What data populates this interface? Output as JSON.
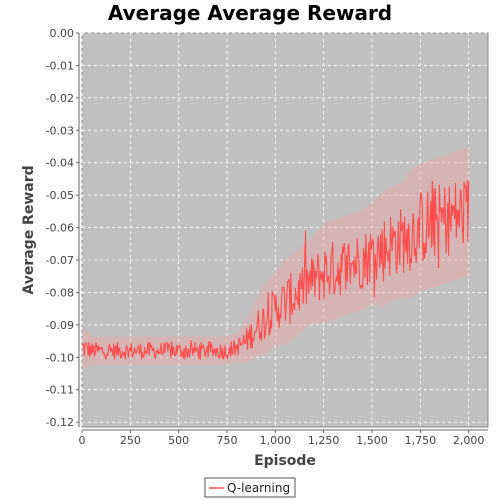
{
  "chart_data": {
    "type": "line",
    "title": "Average Average Reward",
    "xlabel": "Episode",
    "ylabel": "Average Reward",
    "xlim": [
      0,
      2100
    ],
    "ylim": [
      -0.1215,
      0.0
    ],
    "grid": true,
    "legend_position": "bottom-center",
    "x_ticks": [
      0,
      250,
      500,
      750,
      1000,
      1250,
      1500,
      1750,
      2000
    ],
    "x_tick_labels": [
      "0",
      "250",
      "500",
      "750",
      "1,000",
      "1,250",
      "1,500",
      "1,750",
      "2,000"
    ],
    "y_ticks": [
      0.0,
      -0.01,
      -0.02,
      -0.03,
      -0.04,
      -0.05,
      -0.06,
      -0.07,
      -0.08,
      -0.09,
      -0.1,
      -0.11,
      -0.12
    ],
    "y_tick_labels": [
      "0.00",
      "-0.01",
      "-0.02",
      "-0.03",
      "-0.04",
      "-0.05",
      "-0.06",
      "-0.07",
      "-0.08",
      "-0.09",
      "-0.10",
      "-0.11",
      "-0.12"
    ],
    "series": [
      {
        "name": "Q-learning",
        "color": "#ff4d4d",
        "band_color": "#f0a6a6",
        "x": [
          0,
          50,
          100,
          150,
          200,
          250,
          300,
          350,
          400,
          450,
          500,
          550,
          600,
          650,
          700,
          750,
          800,
          850,
          900,
          950,
          1000,
          1050,
          1100,
          1150,
          1200,
          1250,
          1300,
          1350,
          1400,
          1450,
          1500,
          1550,
          1600,
          1650,
          1700,
          1750,
          1800,
          1850,
          1900,
          1950,
          2000
        ],
        "y": [
          -0.097,
          -0.098,
          -0.098,
          -0.098,
          -0.098,
          -0.098,
          -0.098,
          -0.098,
          -0.098,
          -0.098,
          -0.098,
          -0.098,
          -0.098,
          -0.098,
          -0.098,
          -0.098,
          -0.097,
          -0.095,
          -0.091,
          -0.088,
          -0.085,
          -0.083,
          -0.081,
          -0.078,
          -0.076,
          -0.074,
          -0.073,
          -0.072,
          -0.071,
          -0.07,
          -0.068,
          -0.067,
          -0.065,
          -0.064,
          -0.062,
          -0.06,
          -0.059,
          -0.058,
          -0.057,
          -0.056,
          -0.055
        ],
        "spread": [
          0.003,
          0.002,
          0.002,
          0.002,
          0.002,
          0.002,
          0.002,
          0.002,
          0.002,
          0.002,
          0.002,
          0.002,
          0.002,
          0.002,
          0.002,
          0.002,
          0.002,
          0.003,
          0.004,
          0.005,
          0.005,
          0.006,
          0.006,
          0.006,
          0.006,
          0.007,
          0.007,
          0.007,
          0.007,
          0.007,
          0.007,
          0.008,
          0.008,
          0.008,
          0.009,
          0.009,
          0.009,
          0.009,
          0.009,
          0.009,
          0.009
        ]
      }
    ]
  }
}
